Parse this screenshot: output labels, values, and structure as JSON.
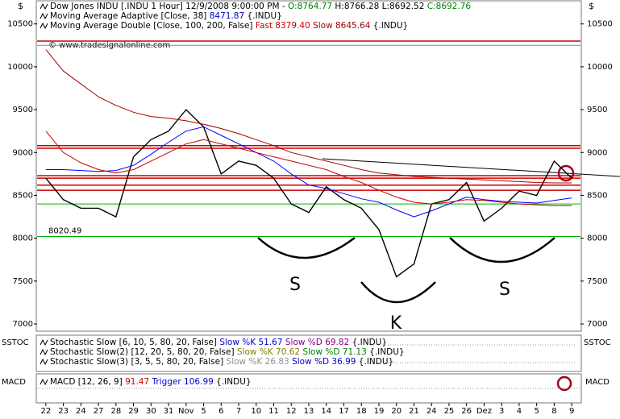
{
  "chart_data": {
    "type": "line",
    "watermark": "© www.tradesignalonline.com",
    "currency_label": "$",
    "categories": [
      "22",
      "23",
      "24",
      "27",
      "28",
      "29",
      "30",
      "31",
      "Nov",
      "5",
      "6",
      "7",
      "10",
      "11",
      "12",
      "13",
      "14",
      "17",
      "18",
      "19",
      "20",
      "21",
      "24",
      "25",
      "26",
      "Dez",
      "3",
      "4",
      "5",
      "8",
      "9"
    ],
    "series": [
      {
        "color": "#000000",
        "values": [
          8700,
          8450,
          8350,
          8350,
          8250,
          8950,
          9150,
          9250,
          9500,
          9300,
          8750,
          8900,
          8850,
          8700,
          8400,
          8300,
          8600,
          8450,
          8350,
          8100,
          7550,
          7700,
          8400,
          8450,
          8650,
          8200,
          8350,
          8550,
          8500,
          8900,
          8700
        ]
      },
      {
        "color": "#0000ff",
        "values": [
          8800,
          8800,
          8790,
          8780,
          8790,
          8850,
          8980,
          9120,
          9250,
          9300,
          9200,
          9100,
          9000,
          8900,
          8750,
          8620,
          8580,
          8520,
          8460,
          8420,
          8330,
          8250,
          8320,
          8400,
          8480,
          8450,
          8430,
          8420,
          8410,
          8440,
          8470
        ]
      },
      {
        "color": "#cc0000",
        "values": [
          9250,
          9000,
          8880,
          8800,
          8760,
          8800,
          8900,
          9000,
          9100,
          9150,
          9100,
          9050,
          9000,
          8950,
          8900,
          8850,
          8800,
          8720,
          8650,
          8560,
          8480,
          8420,
          8400,
          8420,
          8450,
          8440,
          8420,
          8400,
          8390,
          8380,
          8380
        ]
      },
      {
        "color": "#aa0000",
        "values": [
          10200,
          9950,
          9800,
          9650,
          9550,
          9470,
          9420,
          9400,
          9370,
          9330,
          9280,
          9220,
          9150,
          9080,
          9000,
          8950,
          8900,
          8850,
          8800,
          8760,
          8740,
          8720,
          8710,
          8700,
          8690,
          8680,
          8670,
          8660,
          8650,
          8645,
          8645
        ]
      }
    ],
    "levels": [
      {
        "value": 9080,
        "color": "#cc0000"
      },
      {
        "value": 9050,
        "color": "#cc0000"
      },
      {
        "value": 8730,
        "color": "#cc0000"
      },
      {
        "value": 8700,
        "color": "#cc0000"
      },
      {
        "value": 8620,
        "color": "#cc0000"
      },
      {
        "value": 8560,
        "color": "#cc0000"
      },
      {
        "value": 8400,
        "color": "#00b000"
      },
      {
        "value": 8020,
        "color": "#00b000",
        "label": "8020.49"
      },
      {
        "value": 10300,
        "color": "#cc0000"
      },
      {
        "value": 10250,
        "color": "#888888"
      }
    ],
    "ylim": [
      6925,
      10610
    ],
    "yticks": [
      7000,
      7500,
      8000,
      8500,
      9000,
      9500,
      10000,
      10500
    ],
    "annotations": [
      "S",
      "K",
      "S"
    ],
    "legend": [
      [
        {
          "text": "Dow Jones INDU [.INDU  1 Hour] 12/9/2008 9:00:00 PM - ",
          "color": "#000000"
        },
        {
          "text": "O:8764.77",
          "color": "#008000"
        },
        {
          "text": " H:8766.28 L:8692.52 ",
          "color": "#000000"
        },
        {
          "text": "C:8692.76",
          "color": "#008000"
        }
      ],
      [
        {
          "text": "Moving Average Adaptive [Close, 38] ",
          "color": "#000000"
        },
        {
          "text": "8471.87",
          "color": "#0000cc"
        },
        {
          "text": " {.INDU}",
          "color": "#000000"
        }
      ],
      [
        {
          "text": "Moving Average Double [Close, 100, 200, False] ",
          "color": "#000000"
        },
        {
          "text": "Fast 8379.40",
          "color": "#cc0000"
        },
        {
          "text": " Slow 8645.64",
          "color": "#990000"
        },
        {
          "text": " {.INDU}",
          "color": "#000000"
        }
      ]
    ],
    "stoch_label": "SSTOC",
    "stoch_legend": [
      [
        {
          "text": "Stochastic Slow [6, 10, 5, 80, 20, False] ",
          "color": "#000000"
        },
        {
          "text": "Slow %K 51.67",
          "color": "#0000cc"
        },
        {
          "text": " Slow %D 69.82",
          "color": "#800080"
        },
        {
          "text": " {.INDU}",
          "color": "#000000"
        }
      ],
      [
        {
          "text": "Stochastic Slow(2) [12, 20, 5, 80, 20, False] ",
          "color": "#000000"
        },
        {
          "text": "Slow %K 70.62",
          "color": "#808000"
        },
        {
          "text": " Slow %D 71.13",
          "color": "#008000"
        },
        {
          "text": " {.INDU}",
          "color": "#000000"
        }
      ],
      [
        {
          "text": "Stochastic Slow(3) [3, 5, 5, 80, 20, False] ",
          "color": "#000000"
        },
        {
          "text": "Slow %K 26.83",
          "color": "#909090"
        },
        {
          "text": " Slow %D 36.99",
          "color": "#0000cc"
        },
        {
          "text": " {.INDU}",
          "color": "#000000"
        }
      ]
    ],
    "macd_label": "MACD",
    "macd_legend": [
      [
        {
          "text": "MACD [12, 26, 9] ",
          "color": "#000000"
        },
        {
          "text": "91.47",
          "color": "#cc0000"
        },
        {
          "text": " Trigger 106.99",
          "color": "#0000cc"
        },
        {
          "text": " {.INDU}",
          "color": "#000000"
        }
      ]
    ]
  }
}
